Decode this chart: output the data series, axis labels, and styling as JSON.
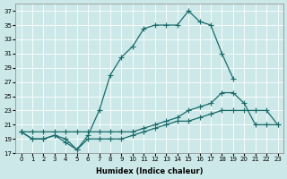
{
  "xlabel": "Humidex (Indice chaleur)",
  "bg_color": "#cce8e8",
  "line_color": "#1a6b6b",
  "grid_color": "#ffffff",
  "xlim": [
    -0.5,
    23.5
  ],
  "ylim": [
    17,
    38
  ],
  "yticks": [
    17,
    19,
    21,
    23,
    25,
    27,
    29,
    31,
    33,
    35,
    37
  ],
  "xticks": [
    0,
    1,
    2,
    3,
    4,
    5,
    6,
    7,
    8,
    9,
    10,
    11,
    12,
    13,
    14,
    15,
    16,
    17,
    18,
    19,
    20,
    21,
    22,
    23
  ],
  "curve1_x": [
    0,
    1,
    2,
    3,
    4,
    5,
    6,
    7,
    8,
    9,
    10,
    11,
    12,
    13,
    14,
    15,
    16,
    17,
    18,
    19
  ],
  "curve1_y": [
    20,
    19,
    19,
    19.5,
    18.5,
    17.5,
    19.5,
    23,
    28,
    30.5,
    32,
    34.5,
    35,
    35,
    35,
    37,
    35.5,
    35,
    31,
    27.5
  ],
  "curve2_x": [
    0,
    1,
    2,
    3,
    4,
    5,
    6,
    7,
    8,
    9,
    10,
    11,
    12,
    13,
    14,
    15,
    16,
    17,
    18,
    19,
    20,
    21,
    22,
    23
  ],
  "curve2_y": [
    20,
    20,
    20,
    20,
    20,
    20,
    20,
    20,
    20,
    20,
    20,
    20.5,
    21,
    21.5,
    22,
    23,
    23.5,
    24,
    25.5,
    25.5,
    24,
    21,
    21,
    21
  ],
  "curve3_x": [
    0,
    1,
    2,
    3,
    4,
    5,
    6,
    7,
    8,
    9,
    10,
    11,
    12,
    13,
    14,
    15,
    16,
    17,
    18,
    19,
    20,
    21,
    22,
    23
  ],
  "curve3_y": [
    20,
    19,
    19,
    19.5,
    19,
    17.5,
    19,
    19,
    19,
    19,
    19.5,
    20,
    20.5,
    21,
    21.5,
    21.5,
    22,
    22.5,
    23,
    23,
    23,
    23,
    23,
    21
  ]
}
